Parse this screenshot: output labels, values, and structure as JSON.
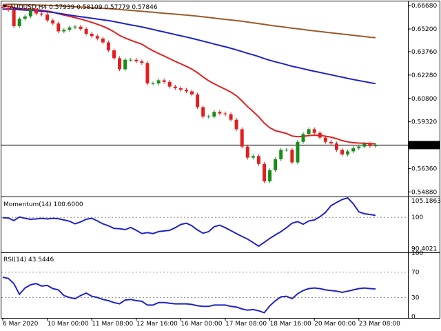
{
  "chart_data": [
    {
      "type": "candlestick",
      "title": "AUDUSD,H4",
      "ohlc_label": "0.57939 0.58109 0.57779 0.57846",
      "last_price": 0.57846,
      "last_price_label": "0.57846",
      "ylim": [
        0.5463,
        0.6695
      ],
      "y_ticks": [
        0.6668,
        0.652,
        0.6376,
        0.6228,
        0.608,
        0.5932,
        0.5784,
        0.5636,
        0.5488
      ],
      "y_tick_labels": [
        "0.66680",
        "0.65200",
        "0.63760",
        "0.62280",
        "0.60800",
        "0.59320",
        "0.57846",
        "0.56360",
        "0.54880"
      ],
      "x_tick_labels": [
        "6 Mar 2020",
        "10 Mar 00:00",
        "11 Mar 08:00",
        "12 Mar 16:00",
        "16 Mar 00:00",
        "17 Mar 08:00",
        "18 Mar 16:00",
        "20 Mar 00:00",
        "23 Mar 08:00"
      ],
      "x_tick_candle_index": [
        0,
        8,
        16,
        24,
        32,
        40,
        48,
        56,
        64
      ],
      "up_color": "#1a8c1a",
      "down_color": "#e02020",
      "closes": [
        0.6655,
        0.664,
        0.6538,
        0.6585,
        0.66,
        0.664,
        0.6618,
        0.6612,
        0.6575,
        0.6555,
        0.6505,
        0.6515,
        0.653,
        0.6535,
        0.652,
        0.649,
        0.6475,
        0.646,
        0.6435,
        0.6385,
        0.6335,
        0.6265,
        0.6325,
        0.6325,
        0.6315,
        0.6305,
        0.6175,
        0.6175,
        0.6195,
        0.6185,
        0.6155,
        0.6145,
        0.6135,
        0.6125,
        0.6105,
        0.6025,
        0.5965,
        0.5965,
        0.5995,
        0.5985,
        0.598,
        0.5945,
        0.5885,
        0.5775,
        0.5705,
        0.5715,
        0.5665,
        0.5555,
        0.5625,
        0.5695,
        0.5755,
        0.5755,
        0.5675,
        0.5805,
        0.5855,
        0.5885,
        0.5862,
        0.5832,
        0.5805,
        0.5795,
        0.5755,
        0.5725,
        0.5745,
        0.5765,
        0.5775,
        0.5792,
        0.5778,
        0.5785
      ],
      "opens": [
        0.666,
        0.6655,
        0.664,
        0.6538,
        0.6585,
        0.66,
        0.664,
        0.6618,
        0.6612,
        0.6575,
        0.6555,
        0.6505,
        0.6515,
        0.653,
        0.6535,
        0.652,
        0.649,
        0.6475,
        0.646,
        0.6435,
        0.6385,
        0.6335,
        0.6265,
        0.6325,
        0.6325,
        0.6315,
        0.6305,
        0.6175,
        0.6175,
        0.6195,
        0.6185,
        0.6155,
        0.6145,
        0.6135,
        0.6125,
        0.6105,
        0.6025,
        0.5965,
        0.5965,
        0.5995,
        0.5985,
        0.598,
        0.5945,
        0.5885,
        0.5775,
        0.5705,
        0.5715,
        0.5665,
        0.5555,
        0.5625,
        0.5695,
        0.5755,
        0.5755,
        0.5675,
        0.5805,
        0.5855,
        0.5885,
        0.5862,
        0.5832,
        0.5805,
        0.5795,
        0.5755,
        0.5725,
        0.5745,
        0.5765,
        0.5775,
        0.5794,
        0.5778
      ],
      "series": [
        {
          "values": [
            0.6663,
            0.6665,
            0.6656,
            0.6649,
            0.6646,
            0.6645,
            0.6642,
            0.6639,
            0.6634,
            0.6627,
            0.6617,
            0.6608,
            0.66,
            0.6592,
            0.6583,
            0.6573,
            0.6562,
            0.655,
            0.6537,
            0.6521,
            0.6502,
            0.6479,
            0.6463,
            0.6449,
            0.6436,
            0.6424,
            0.6402,
            0.6382,
            0.6365,
            0.6349,
            0.6332,
            0.6315,
            0.6299,
            0.6283,
            0.6266,
            0.6243,
            0.6216,
            0.6192,
            0.6173,
            0.6155,
            0.6138,
            0.612,
            0.6097,
            0.6064,
            0.6028,
            0.5997,
            0.5964,
            0.5923,
            0.5894,
            0.5876,
            0.5867,
            0.5858,
            0.5842,
            0.5838,
            0.584,
            0.5845,
            0.5847,
            0.5846,
            0.5841,
            0.5835,
            0.5825,
            0.5813,
            0.5805,
            0.58,
            0.5797,
            0.5796,
            0.5794,
            0.5793
          ],
          "color": "#e02020"
        },
        {
          "values": [
            0.6645,
            0.6647,
            0.6645,
            0.6642,
            0.664,
            0.6638,
            0.6636,
            0.6633,
            0.6629,
            0.6625,
            0.662,
            0.6614,
            0.6608,
            0.6603,
            0.6598,
            0.6593,
            0.6588,
            0.6583,
            0.6578,
            0.6573,
            0.6567,
            0.656,
            0.6553,
            0.6546,
            0.654,
            0.6533,
            0.6525,
            0.6517,
            0.6509,
            0.6501,
            0.6493,
            0.6485,
            0.6477,
            0.6469,
            0.6461,
            0.6452,
            0.6443,
            0.6434,
            0.6425,
            0.6416,
            0.6407,
            0.6398,
            0.6388,
            0.6377,
            0.6366,
            0.6356,
            0.6345,
            0.6333,
            0.6322,
            0.6312,
            0.6303,
            0.6294,
            0.6284,
            0.6276,
            0.6268,
            0.626,
            0.6252,
            0.6245,
            0.6237,
            0.623,
            0.6222,
            0.6215,
            0.6207,
            0.62,
            0.6193,
            0.6187,
            0.618,
            0.6174
          ],
          "color": "#1e22c8"
        },
        {
          "values": [
            0.6675,
            0.6676,
            0.6676,
            0.6675,
            0.6674,
            0.6673,
            0.6672,
            0.6671,
            0.667,
            0.6669,
            0.6667,
            0.6665,
            0.6663,
            0.6661,
            0.6659,
            0.6657,
            0.6655,
            0.6653,
            0.6651,
            0.6649,
            0.6647,
            0.6644,
            0.6641,
            0.6638,
            0.6635,
            0.6632,
            0.6629,
            0.6626,
            0.6623,
            0.662,
            0.6617,
            0.6614,
            0.6611,
            0.6608,
            0.6605,
            0.6601,
            0.6597,
            0.6593,
            0.6589,
            0.6585,
            0.6581,
            0.6577,
            0.6573,
            0.6569,
            0.6564,
            0.6559,
            0.6554,
            0.6549,
            0.6544,
            0.6539,
            0.6535,
            0.653,
            0.6525,
            0.6521,
            0.6517,
            0.6512,
            0.6508,
            0.6504,
            0.65,
            0.6496,
            0.6492,
            0.6488,
            0.6484,
            0.648,
            0.6476,
            0.6472,
            0.6468,
            0.6465
          ],
          "color": "#9a5a2a"
        }
      ]
    },
    {
      "type": "line",
      "title": "Momentum(14) 100.6000",
      "ylim": [
        89.4,
        106.0
      ],
      "y_tick_labels": [
        "105.1863",
        "100",
        "90.4021"
      ],
      "y_ticks": [
        105.1863,
        100,
        90.4021
      ],
      "reference_level": 100,
      "series": [
        {
          "values": [
            99.9,
            99.8,
            99.0,
            100.1,
            99.7,
            99.4,
            99.5,
            99.7,
            99.5,
            99.7,
            99.6,
            99.2,
            98.8,
            98.0,
            98.6,
            99.4,
            99.7,
            98.9,
            98.0,
            97.4,
            96.6,
            96.5,
            96.2,
            96.9,
            96.0,
            95.0,
            95.3,
            95.0,
            95.6,
            95.8,
            96.0,
            96.8,
            97.8,
            98.2,
            97.4,
            96.1,
            95.1,
            95.6,
            97.1,
            97.6,
            96.8,
            95.9,
            95.0,
            94.1,
            93.3,
            92.2,
            91.1,
            92.3,
            93.5,
            94.6,
            95.6,
            96.8,
            98.2,
            98.7,
            97.9,
            98.9,
            99.2,
            100.2,
            101.5,
            103.6,
            104.6,
            105.5,
            106.0,
            104.2,
            101.7,
            101.1,
            100.9,
            100.6
          ],
          "color": "#1e22c8"
        }
      ]
    },
    {
      "type": "line",
      "title": "RSI(14) 43.5446",
      "ylim": [
        0,
        100
      ],
      "y_tick_labels": [
        "100",
        "70",
        "30",
        "0"
      ],
      "y_ticks": [
        100,
        70,
        30,
        0
      ],
      "reference_levels": [
        70,
        30
      ],
      "series": [
        {
          "values": [
            62,
            60,
            52,
            35,
            45,
            50,
            52,
            48,
            49,
            44,
            42,
            33,
            30,
            28,
            33,
            37,
            32,
            30,
            27,
            25,
            22,
            20,
            26,
            27,
            25,
            24,
            18,
            18,
            22,
            22,
            21,
            20,
            20,
            20,
            19,
            17,
            16,
            16,
            18,
            18,
            18,
            16,
            15,
            12,
            10,
            11,
            9,
            6,
            17,
            25,
            31,
            32,
            28,
            36,
            41,
            44,
            45,
            44,
            42,
            41,
            40,
            38,
            40,
            42,
            44,
            45,
            44,
            43.5
          ],
          "color": "#1e22c8"
        }
      ]
    }
  ]
}
